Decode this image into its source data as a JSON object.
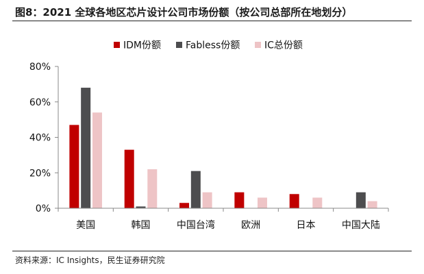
{
  "figure": {
    "title": "图8：2021 全球各地区芯片设计公司市场份额（按公司总部所在地划分）",
    "source": "资料来源：IC Insights，民生证券研究院"
  },
  "colors": {
    "idm": "#c00000",
    "fabless": "#4d4d4f",
    "ic": "#eec4c6",
    "axis": "#888888"
  },
  "chart_data": {
    "type": "bar",
    "categories": [
      "美国",
      "韩国",
      "中国台湾",
      "欧洲",
      "日本",
      "中国大陆"
    ],
    "series": [
      {
        "name": "IDM份额",
        "values": [
          47,
          33,
          3,
          9,
          8,
          0
        ]
      },
      {
        "name": "Fabless份额",
        "values": [
          68,
          1,
          21,
          0,
          0,
          9
        ]
      },
      {
        "name": "IC总份额",
        "values": [
          54,
          22,
          9,
          6,
          6,
          4
        ]
      }
    ],
    "yticks": [
      "0%",
      "20%",
      "40%",
      "60%",
      "80%"
    ],
    "ylim": [
      0,
      80
    ],
    "grid": false,
    "legend": "top-center"
  }
}
